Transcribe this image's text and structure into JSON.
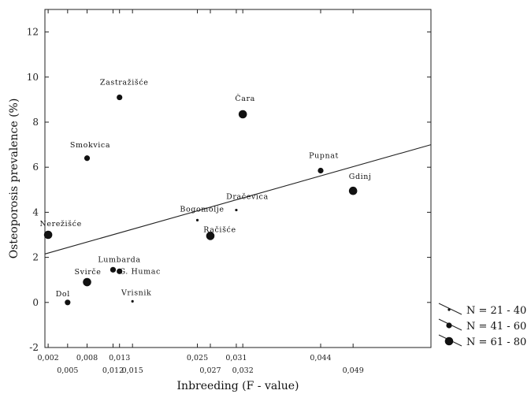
{
  "chart_data": {
    "type": "scatter",
    "xlabel": "Inbreeding (F - value)",
    "ylabel": "Osteoporosis prevalence (%)",
    "xlim": [
      0.0015,
      0.061
    ],
    "ylim": [
      -2,
      13
    ],
    "yticks": [
      "-2",
      "0",
      "2",
      "4",
      "6",
      "8",
      "10",
      "12"
    ],
    "xticks_upper": [
      {
        "value": 0.002,
        "label": "0,002"
      },
      {
        "value": 0.008,
        "label": "0,008"
      },
      {
        "value": 0.013,
        "label": "0,013"
      },
      {
        "value": 0.025,
        "label": "0,025"
      },
      {
        "value": 0.031,
        "label": "0,031"
      },
      {
        "value": 0.044,
        "label": "0,044"
      }
    ],
    "xticks_lower": [
      {
        "value": 0.005,
        "label": "0,005"
      },
      {
        "value": 0.012,
        "label": "0,012"
      },
      {
        "value": 0.015,
        "label": "0,015"
      },
      {
        "value": 0.027,
        "label": "0,027"
      },
      {
        "value": 0.032,
        "label": "0,032"
      },
      {
        "value": 0.049,
        "label": "0,049"
      }
    ],
    "points": [
      {
        "label": "Zastražišće",
        "x": 0.013,
        "y": 9.1,
        "size": "N = 41 - 60"
      },
      {
        "label": "Čara",
        "x": 0.032,
        "y": 8.35,
        "size": "N = 61 - 80"
      },
      {
        "label": "Smokvica",
        "x": 0.008,
        "y": 6.4,
        "size": "N = 41 - 60"
      },
      {
        "label": "Pupnat",
        "x": 0.044,
        "y": 5.85,
        "size": "N = 41 - 60"
      },
      {
        "label": "Gdinj",
        "x": 0.049,
        "y": 4.95,
        "size": "N = 61 - 80"
      },
      {
        "label": "Dračevica",
        "x": 0.031,
        "y": 4.1,
        "size": "N = 21 - 40"
      },
      {
        "label": "Bogomolje",
        "x": 0.025,
        "y": 3.65,
        "size": "N = 21 - 40"
      },
      {
        "label": "Račišće",
        "x": 0.027,
        "y": 2.95,
        "size": "N = 61 - 80"
      },
      {
        "label": "Nerežišće",
        "x": 0.002,
        "y": 3.0,
        "size": "N = 61 - 80"
      },
      {
        "label": "Lumbarda",
        "x": 0.012,
        "y": 1.45,
        "size": "N = 41 - 60"
      },
      {
        "label": "G. Humac",
        "x": 0.013,
        "y": 1.38,
        "size": "N = 41 - 60"
      },
      {
        "label": "Svirče",
        "x": 0.008,
        "y": 0.9,
        "size": "N = 61 - 80"
      },
      {
        "label": "Dol",
        "x": 0.005,
        "y": 0.0,
        "size": "N = 41 - 60"
      },
      {
        "label": "Vrisnik",
        "x": 0.015,
        "y": 0.05,
        "size": "N = 21 - 40"
      }
    ],
    "trendline": {
      "x": [
        0.0015,
        0.061
      ],
      "y": [
        2.15,
        7.0
      ]
    },
    "legend": {
      "placement": "bottom-right",
      "entries": [
        "N = 21 - 40",
        "N = 41 - 60",
        "N = 61 - 80"
      ]
    },
    "grid": false
  }
}
